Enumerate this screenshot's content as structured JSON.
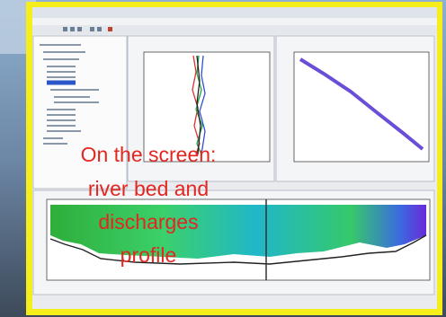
{
  "overlay": {
    "lines": [
      "On the screen:",
      "river bed and",
      "discharges",
      "profile"
    ]
  }
}
